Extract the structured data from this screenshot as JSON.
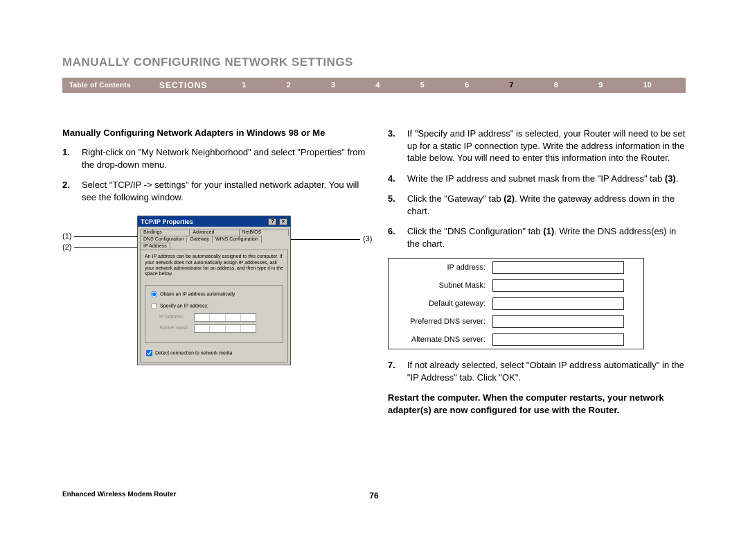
{
  "heading": "MANUALLY CONFIGURING NETWORK SETTINGS",
  "nav": {
    "toc": "Table of Contents",
    "sections_label": "SECTIONS",
    "numbers": [
      "1",
      "2",
      "3",
      "4",
      "5",
      "6",
      "7",
      "8",
      "9",
      "10"
    ],
    "active_index": 6
  },
  "sub_heading": "Manually Configuring Network Adapters in Windows 98 or Me",
  "left_steps": [
    {
      "n": "1.",
      "html": "Right-click on \"My Network Neighborhood\" and select \"Properties\" from the drop-down menu."
    },
    {
      "n": "2.",
      "html": "Select \"TCP/IP -> settings\" for your installed network adapter. You will see the following window."
    }
  ],
  "right_steps": [
    {
      "n": "3.",
      "html": "If \"Specify and IP address\" is selected, your Router will need to be set up for a static IP connection type. Write the address information in the table below. You will need to enter this information into the Router."
    },
    {
      "n": "4.",
      "html": "Write the IP address and subnet mask from the \"IP Address\" tab <b>(3)</b>."
    },
    {
      "n": "5.",
      "html": "Click the \"Gateway\" tab <b>(2)</b>. Write the gateway address down in the chart."
    },
    {
      "n": "6.",
      "html": "Click the \"DNS Configuration\" tab <b>(1)</b>. Write the DNS address(es) in the chart."
    }
  ],
  "step7": {
    "n": "7.",
    "html": "If not already selected, select \"Obtain IP address automatically\" in the \"IP Address\" tab. Click \"OK\"."
  },
  "restart_note": "Restart the computer. When the computer restarts, your network adapter(s) are now configured for use with the Router.",
  "dialog": {
    "title": "TCP/IP Properties",
    "tabs_row1": [
      "Bindings",
      "Advanced",
      "NetBIOS"
    ],
    "tabs_row2": [
      "DNS Configuration",
      "Gateway",
      "WINS Configuration",
      "IP Address"
    ],
    "desc": "An IP address can be automatically assigned to this computer. If your network does not automatically assign IP addresses, ask your network administrator for an address, and then type it in the space below.",
    "radio1": "Obtain an IP address automatically",
    "radio2": "Specify an IP address:",
    "field1": "IP Address:",
    "field2": "Subnet Mask:",
    "checkbox": "Detect connection to network media"
  },
  "callouts": {
    "c1": "(1)",
    "c2": "(2)",
    "c3": "(3)"
  },
  "ip_table": {
    "rows": [
      "IP address:",
      "Subnet Mask:",
      "Default gateway:",
      "Preferred DNS server:",
      "Alternate DNS server:"
    ]
  },
  "footer": {
    "left": "Enhanced Wireless Modem Router",
    "page": "76"
  },
  "colors": {
    "nav_bg": "#aa938e",
    "heading_gray": "#888888",
    "dialog_title_bg": "#0a3c8e",
    "dialog_bg": "#d2d0c6"
  }
}
